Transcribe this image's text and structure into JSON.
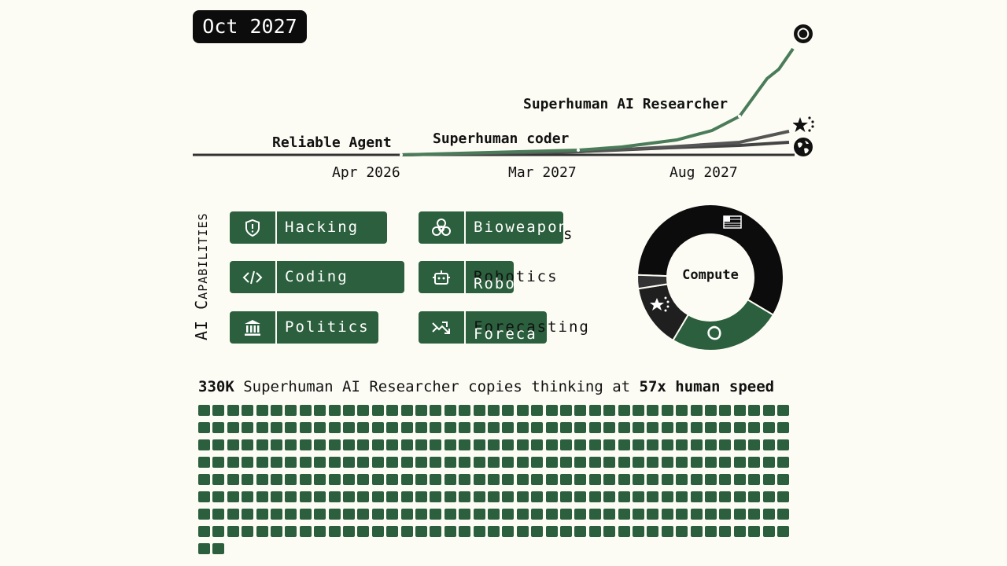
{
  "header": {
    "date": "Oct 2027"
  },
  "timeline": {
    "milestones": [
      "Reliable Agent",
      "Superhuman coder",
      "Superhuman AI Researcher"
    ],
    "ticks": [
      "Apr 2026",
      "Mar 2027",
      "Aug 2027"
    ],
    "actors": [
      {
        "name": "openai-logo",
        "color": "#4a7c59"
      },
      {
        "name": "china-flag",
        "color": "#555555"
      },
      {
        "name": "globe",
        "color": "#444444"
      }
    ]
  },
  "capabilities": {
    "axis_label_a": "AI C",
    "axis_label_b": "APABILITIES",
    "items": [
      {
        "name": "Hacking",
        "icon": "shield-alert-icon",
        "level": 1.0
      },
      {
        "name": "Coding",
        "icon": "code-icon",
        "level": 1.0
      },
      {
        "name": "Politics",
        "icon": "bank-icon",
        "level": 1.0
      },
      {
        "name": "Bioweapons",
        "icon": "biohazard-icon",
        "level": 0.94
      },
      {
        "name": "Robotics",
        "icon": "robot-icon",
        "level": 0.5
      },
      {
        "name": "Forecasting",
        "icon": "trend-icon",
        "level": 0.77
      }
    ]
  },
  "compute": {
    "label": "Compute",
    "slices": [
      {
        "name": "us-flag",
        "value": 58,
        "color": "#0c0c0c"
      },
      {
        "name": "openai-logo",
        "value": 25,
        "color": "#2b5f3d"
      },
      {
        "name": "china-flag",
        "value": 14,
        "color": "#1f1f1f"
      },
      {
        "name": "other",
        "value": 3,
        "color": "#333333"
      }
    ]
  },
  "copies": {
    "count": "330K",
    "text": " Superhuman AI Researcher copies thinking at ",
    "speed": "57x human speed",
    "squares": 330
  }
}
